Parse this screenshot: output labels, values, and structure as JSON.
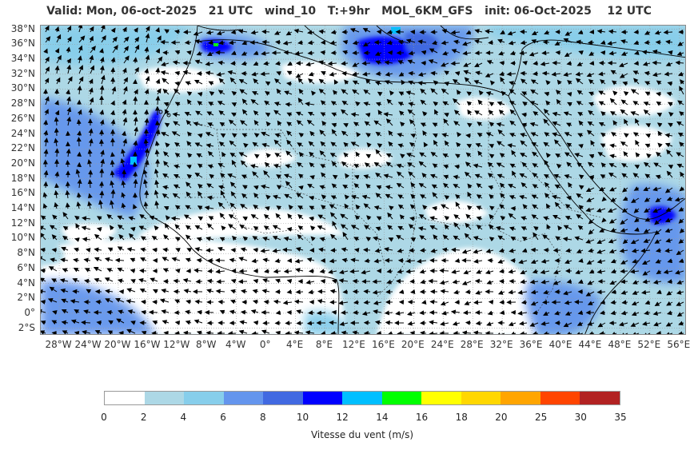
{
  "title": {
    "valid": "Valid: Mon, 06-oct-2025",
    "utc": "21 UTC",
    "variable": "wind_10",
    "lead": "T:+9hr",
    "model": "MOL_6KM_GFS",
    "init": "init: 06-Oct-2025",
    "init_utc": "12 UTC"
  },
  "map": {
    "lat_labels": [
      "38°N",
      "36°N",
      "34°N",
      "32°N",
      "30°N",
      "28°N",
      "26°N",
      "24°N",
      "22°N",
      "20°N",
      "18°N",
      "16°N",
      "14°N",
      "12°N",
      "10°N",
      "8°N",
      "6°N",
      "4°N",
      "2°N",
      "0°",
      "2°S"
    ],
    "lon_labels": [
      "28°W",
      "24°W",
      "20°W",
      "16°W",
      "12°W",
      "8°W",
      "4°W",
      "0°",
      "4°E",
      "8°E",
      "12°E",
      "16°E",
      "20°E",
      "24°E",
      "28°E",
      "32°E",
      "36°E",
      "40°E",
      "44°E",
      "48°E",
      "52°E",
      "56°E"
    ],
    "lat_range": [
      -3,
      38.5
    ],
    "lon_range": [
      -30.5,
      57
    ],
    "grid": true,
    "background_color": "#ffffff",
    "coastline_color": "#000000",
    "gridline_color": "#aaaaaa"
  },
  "colorbar": {
    "ticks": [
      "0",
      "2",
      "4",
      "6",
      "8",
      "10",
      "12",
      "14",
      "16",
      "18",
      "20",
      "25",
      "30",
      "35"
    ],
    "colors": [
      "#ffffff",
      "#add8e6",
      "#87ceeb",
      "#6495ed",
      "#4169e1",
      "#0000ff",
      "#00bfff",
      "#00ff00",
      "#ffff00",
      "#ffd700",
      "#ffa500",
      "#ff4500",
      "#b22222"
    ],
    "caption": "Vitesse du vent (m/s)"
  }
}
